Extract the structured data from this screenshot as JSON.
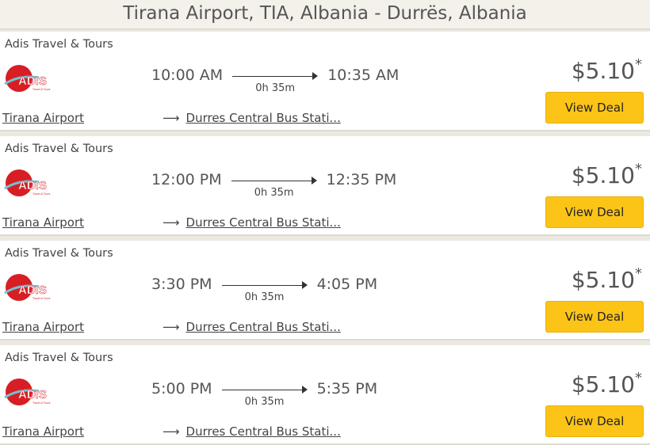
{
  "header": {
    "title": "Tirana Airport, TIA, Albania - Durrës, Albania"
  },
  "colors": {
    "button": "#fcc417",
    "logo_red": "#d81e25"
  },
  "results": [
    {
      "operator": "Adis Travel & Tours",
      "logo_text": "ADIS",
      "depart": "10:00 AM",
      "arrive": "10:35 AM",
      "duration": "0h 35m",
      "price": "$5.10",
      "price_mark": "*",
      "button": "View Deal",
      "from": "Tirana Airport",
      "to": "Durres Central Bus Stati..."
    },
    {
      "operator": "Adis Travel & Tours",
      "logo_text": "ADIS",
      "depart": "12:00 PM",
      "arrive": "12:35 PM",
      "duration": "0h 35m",
      "price": "$5.10",
      "price_mark": "*",
      "button": "View Deal",
      "from": "Tirana Airport",
      "to": "Durres Central Bus Stati..."
    },
    {
      "operator": "Adis Travel & Tours",
      "logo_text": "ADIS",
      "depart": "3:30 PM",
      "arrive": "4:05 PM",
      "duration": "0h 35m",
      "price": "$5.10",
      "price_mark": "*",
      "button": "View Deal",
      "from": "Tirana Airport",
      "to": "Durres Central Bus Stati..."
    },
    {
      "operator": "Adis Travel & Tours",
      "logo_text": "ADIS",
      "depart": "5:00 PM",
      "arrive": "5:35 PM",
      "duration": "0h 35m",
      "price": "$5.10",
      "price_mark": "*",
      "button": "View Deal",
      "from": "Tirana Airport",
      "to": "Durres Central Bus Stati..."
    }
  ]
}
